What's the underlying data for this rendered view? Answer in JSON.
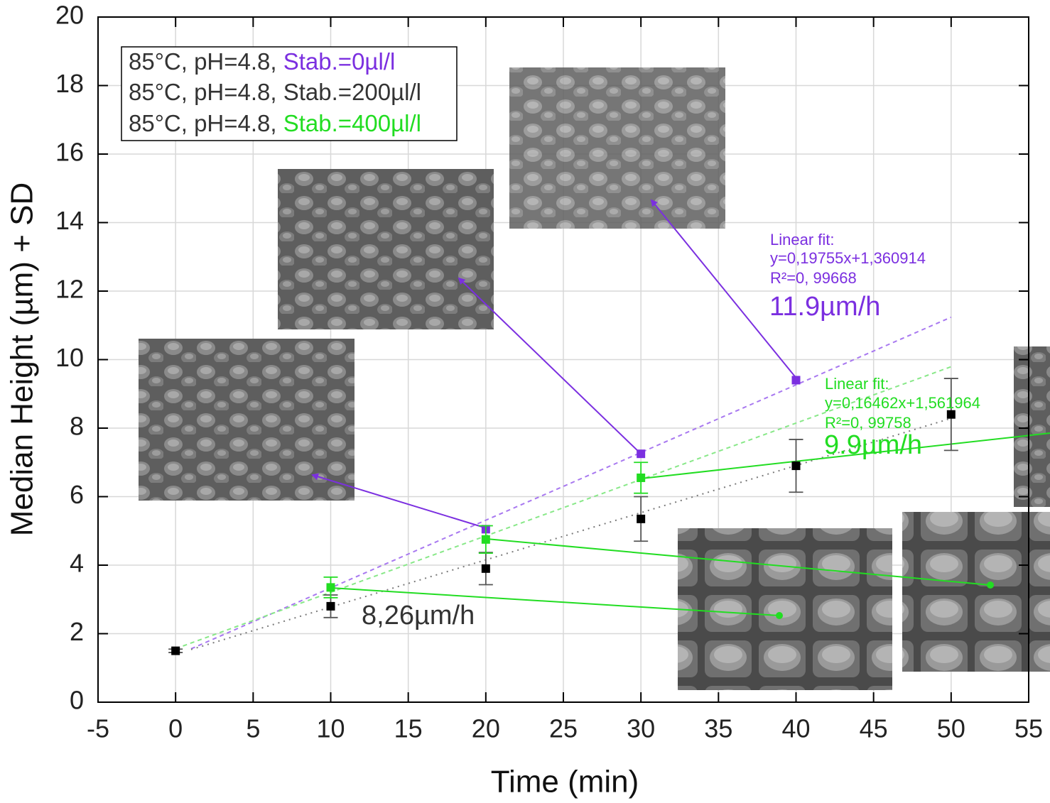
{
  "chart_data": {
    "type": "scatter",
    "x_label": "Time (min)",
    "y_label": "Median Height (µm) + SD",
    "xlim": [
      -5,
      55
    ],
    "xticks": [
      -5,
      0,
      5,
      10,
      15,
      20,
      25,
      30,
      35,
      40,
      45,
      50,
      55
    ],
    "ylim": [
      0,
      20
    ],
    "yticks": [
      0,
      2,
      4,
      6,
      8,
      10,
      12,
      14,
      16,
      18,
      20
    ],
    "grid": true,
    "legend_prefix": "85°C, pH=4.8, ",
    "series": [
      {
        "name": "Stab.=0µl/l",
        "color": "#7b2fe0",
        "fit_color": "#a878f0",
        "x": [
          20,
          30,
          40
        ],
        "values": [
          5.05,
          7.25,
          9.4
        ],
        "fit": {
          "slope": 0.19755,
          "intercept": 1.360914,
          "range": [
            1,
            50
          ],
          "text": [
            "Linear fit:",
            "y=0,19755x+1,360914",
            "R²=0, 99668"
          ],
          "rate": "11.9µm/h"
        }
      },
      {
        "name": "Stab.=200µl/l",
        "color": "#000000",
        "fit_color": "#7a7a7a",
        "x": [
          0,
          10,
          20,
          30,
          40,
          50
        ],
        "values": [
          1.5,
          2.8,
          3.9,
          5.35,
          6.9,
          8.4
        ],
        "errors": [
          0.05,
          0.33,
          0.47,
          0.65,
          0.77,
          1.05
        ],
        "fit": {
          "slope": 0.1377,
          "intercept": 1.4,
          "range": [
            1,
            50
          ],
          "rate": "8,26µm/h"
        }
      },
      {
        "name": "Stab.=400µl/l",
        "color": "#22dd22",
        "fit_color": "#88e888",
        "x": [
          10,
          20,
          30
        ],
        "values": [
          3.35,
          4.75,
          6.55
        ],
        "errors": [
          0.3,
          0.4,
          0.45
        ],
        "fit": {
          "slope": 0.16462,
          "intercept": 1.561964,
          "range": [
            0,
            50
          ],
          "text": [
            "Linear fit:",
            "y=0,16462x+1,561964",
            "R²=0, 99758"
          ],
          "rate": "9.9µm/h"
        }
      }
    ]
  }
}
